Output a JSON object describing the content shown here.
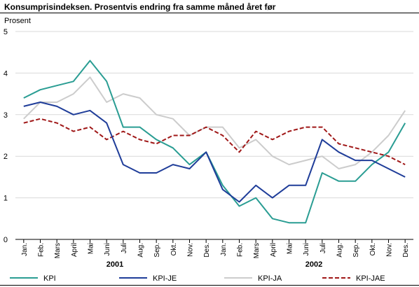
{
  "chart_data": {
    "type": "line",
    "title": "Konsumprisindeksen. Prosentvis endring fra samme måned året før",
    "ylabel": "Prosent",
    "ylim": [
      0,
      5
    ],
    "yticks": [
      0,
      1,
      2,
      3,
      4,
      5
    ],
    "grid": true,
    "legend_position": "bottom",
    "categories": [
      "Jan.",
      "Feb.",
      "Mars",
      "April",
      "Mai",
      "Juni",
      "Juli",
      "Aug.",
      "Sep.",
      "Okt.",
      "Nov.",
      "Des.",
      "Jan.",
      "Feb.",
      "Mars",
      "April",
      "Mai",
      "Juni",
      "Juli",
      "Aug.",
      "Sep.",
      "Okt.",
      "Nov.",
      "Des."
    ],
    "year_labels": [
      {
        "label": "2001",
        "from": 0,
        "to": 11
      },
      {
        "label": "2002",
        "from": 12,
        "to": 23
      }
    ],
    "series": [
      {
        "name": "KPI",
        "color": "#2a9d93",
        "dash": "solid",
        "values": [
          3.4,
          3.6,
          3.7,
          3.8,
          4.3,
          3.8,
          2.7,
          2.7,
          2.4,
          2.2,
          1.8,
          2.1,
          1.3,
          0.8,
          1.0,
          0.5,
          0.4,
          0.4,
          1.6,
          1.4,
          1.4,
          1.8,
          2.1,
          2.8
        ]
      },
      {
        "name": "KPI-JE",
        "color": "#1f3d99",
        "dash": "solid",
        "values": [
          3.2,
          3.3,
          3.2,
          3.0,
          3.1,
          2.8,
          1.8,
          1.6,
          1.6,
          1.8,
          1.7,
          2.1,
          1.2,
          0.9,
          1.3,
          1.0,
          1.3,
          1.3,
          2.4,
          2.1,
          1.9,
          1.9,
          1.7,
          1.5
        ]
      },
      {
        "name": "KPI-JA",
        "color": "#cccccc",
        "dash": "solid",
        "values": [
          2.9,
          3.3,
          3.3,
          3.5,
          3.9,
          3.3,
          3.5,
          3.4,
          3.0,
          2.9,
          2.5,
          2.7,
          2.7,
          2.2,
          2.4,
          2.0,
          1.8,
          1.9,
          2.0,
          1.7,
          1.8,
          2.1,
          2.5,
          3.1
        ]
      },
      {
        "name": "KPI-JAE",
        "color": "#a01818",
        "dash": "dashed",
        "values": [
          2.8,
          2.9,
          2.8,
          2.6,
          2.7,
          2.4,
          2.6,
          2.4,
          2.3,
          2.5,
          2.5,
          2.7,
          2.5,
          2.1,
          2.6,
          2.4,
          2.6,
          2.7,
          2.7,
          2.3,
          2.2,
          2.1,
          2.0,
          1.8
        ]
      }
    ]
  }
}
